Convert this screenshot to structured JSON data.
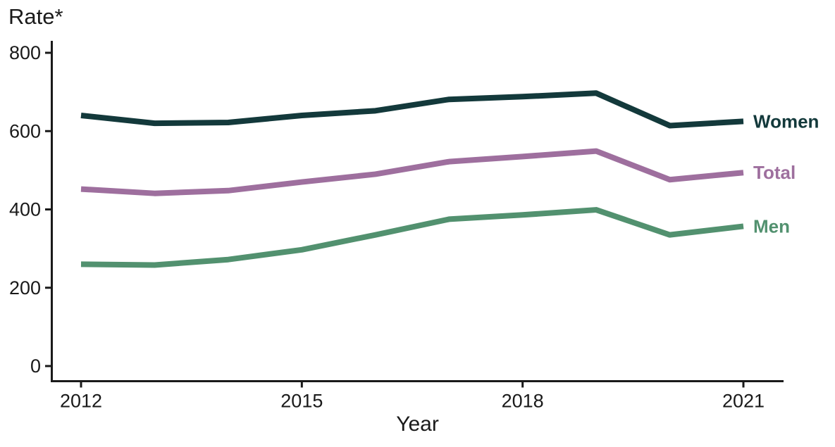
{
  "page": {
    "background": "#ffffff",
    "axis_color": "#1a1a1a",
    "text_color": "#1a1a1a"
  },
  "chart_data": {
    "type": "line",
    "title": "Rate*",
    "xlabel": "Year",
    "ylabel": "Rate*",
    "x": [
      2012,
      2013,
      2014,
      2015,
      2016,
      2017,
      2018,
      2019,
      2020,
      2021
    ],
    "series": [
      {
        "name": "Women",
        "color": "#13393B",
        "values": [
          640,
          620,
          622,
          640,
          652,
          681,
          688,
          697,
          614,
          625
        ]
      },
      {
        "name": "Total",
        "color": "#9E6F9E",
        "values": [
          452,
          441,
          448,
          470,
          490,
          522,
          535,
          549,
          476,
          494
        ]
      },
      {
        "name": "Men",
        "color": "#52916F",
        "values": [
          260,
          258,
          272,
          297,
          335,
          375,
          386,
          399,
          335,
          357
        ]
      }
    ],
    "ylim": [
      0,
      800
    ],
    "yticks": [
      0,
      200,
      400,
      600,
      800
    ],
    "xticks": [
      2012,
      2015,
      2018,
      2021
    ],
    "grid": false,
    "legend_position": "right-end-line-labels"
  }
}
